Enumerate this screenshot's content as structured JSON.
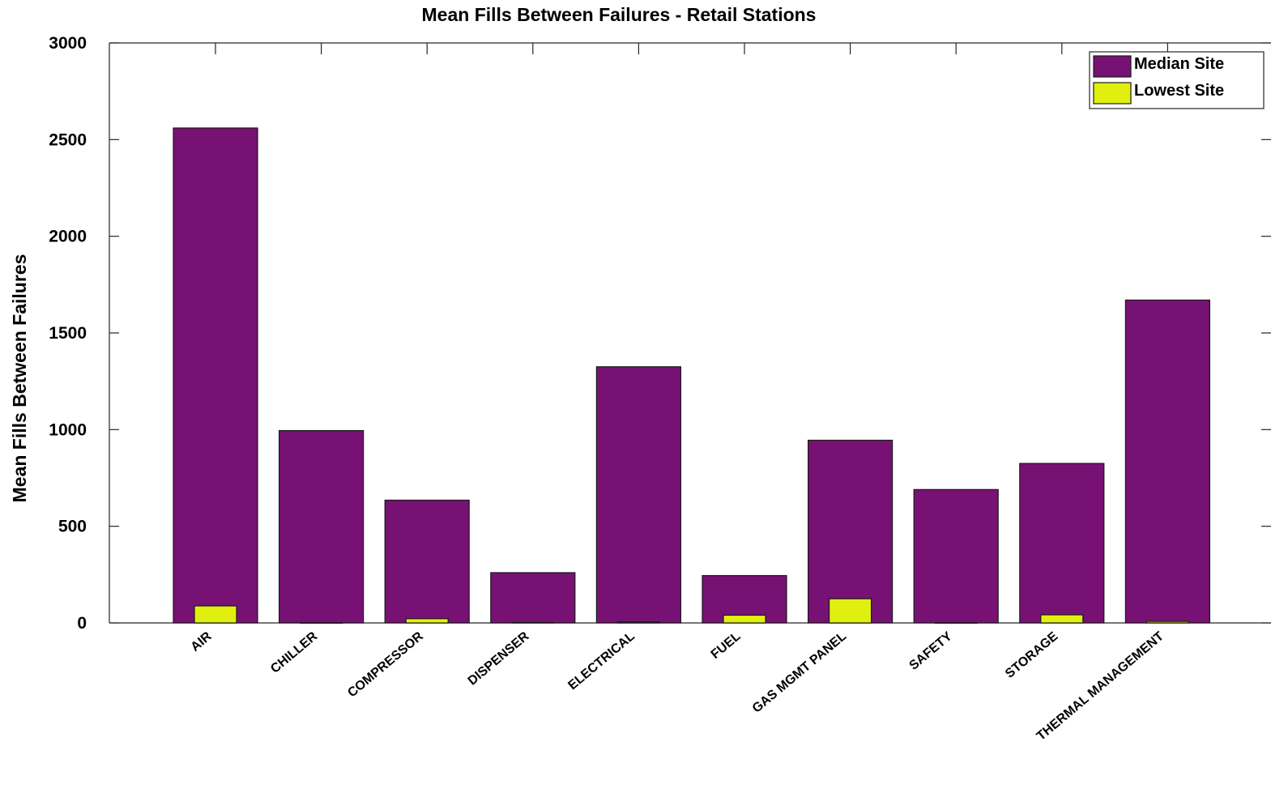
{
  "chart_data": {
    "type": "bar",
    "title": "Mean Fills Between Failures - Retail Stations",
    "xlabel": "",
    "ylabel": "Mean Fills Between Failures",
    "ylim": [
      0,
      3000
    ],
    "yticks": [
      0,
      500,
      1000,
      1500,
      2000,
      2500,
      3000
    ],
    "categories": [
      "AIR",
      "CHILLER",
      "COMPRESSOR",
      "DISPENSER",
      "ELECTRICAL",
      "FUEL",
      "GAS MGMT PANEL",
      "SAFETY",
      "STORAGE",
      "THERMAL MANAGEMENT"
    ],
    "series": [
      {
        "name": "Median Site",
        "color": "#771173",
        "values": [
          2560,
          995,
          635,
          260,
          1325,
          245,
          945,
          690,
          825,
          1670
        ]
      },
      {
        "name": "Lowest Site",
        "color": "#e1ef0e",
        "values": [
          88,
          1,
          22,
          2,
          5,
          40,
          125,
          1,
          42,
          8
        ]
      }
    ],
    "legend": {
      "position": "top-right"
    },
    "grid": false
  }
}
